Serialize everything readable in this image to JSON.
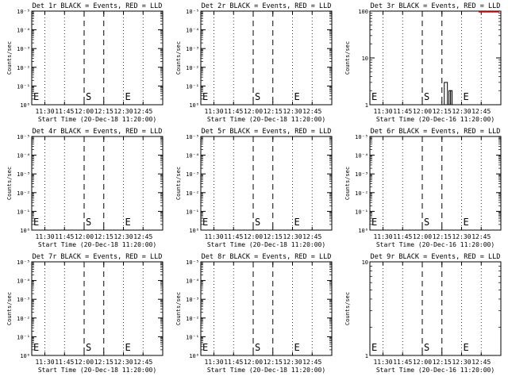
{
  "chart_data": [
    {
      "type": "line",
      "title": "Det 1r BLACK = Events, RED = LLD",
      "xlabel": "Start Time (20-Dec-18 11:20:00)",
      "ylabel": "Counts/sec",
      "x_ticks": [
        "11:30",
        "11:45",
        "12:00",
        "12:15",
        "12:30",
        "12:45"
      ],
      "y_scale": "log",
      "y_ticks": [
        "10⁰",
        "10⁻¹",
        "10⁻²",
        "10⁻³",
        "10⁻⁴",
        "10⁻⁵"
      ],
      "markers": [
        {
          "label": "E",
          "x": "11:20"
        },
        {
          "label": "S",
          "x": "12:00"
        },
        {
          "label": "E",
          "x": "12:30"
        }
      ],
      "series": []
    },
    {
      "type": "line",
      "title": "Det 2r BLACK = Events, RED = LLD",
      "xlabel": "Start Time (20-Dec-18 11:20:00)",
      "ylabel": "Counts/sec",
      "x_ticks": [
        "11:30",
        "11:45",
        "12:00",
        "12:15",
        "12:30",
        "12:45"
      ],
      "y_scale": "log",
      "y_ticks": [
        "10⁰",
        "10⁻¹",
        "10⁻²",
        "10⁻³",
        "10⁻⁴",
        "10⁻⁵"
      ],
      "markers": [
        {
          "label": "E",
          "x": "11:20"
        },
        {
          "label": "S",
          "x": "12:00"
        },
        {
          "label": "E",
          "x": "12:30"
        }
      ],
      "series": []
    },
    {
      "type": "line",
      "title": "Det 3r BLACK = Events, RED = LLD",
      "xlabel": "Start Time (20-Dec-16 11:20:00)",
      "ylabel": "Counts/sec",
      "x_ticks": [
        "11:30",
        "11:45",
        "12:00",
        "12:15",
        "12:30",
        "12:45"
      ],
      "y_scale": "log",
      "y_ticks": [
        "1",
        "10",
        "100"
      ],
      "markers": [
        {
          "label": "E",
          "x": "11:20"
        },
        {
          "label": "S",
          "x": "12:00"
        },
        {
          "label": "E",
          "x": "12:30"
        }
      ],
      "series": [
        {
          "color": "#000000",
          "hist": [
            [
              12.28,
              12.32,
              3
            ],
            [
              12.32,
              12.34,
              1
            ],
            [
              12.34,
              12.36,
              2
            ],
            [
              12.36,
              12.38,
              2
            ]
          ]
        }
      ]
    },
    {
      "type": "line",
      "title": "Det 4r BLACK = Events, RED = LLD",
      "xlabel": "Start Time (20-Dec-18 11:20:00)",
      "ylabel": "Counts/sec",
      "x_ticks": [
        "11:30",
        "11:45",
        "12:00",
        "12:15",
        "12:30",
        "12:45"
      ],
      "y_scale": "log",
      "y_ticks": [
        "10⁰",
        "10⁻¹",
        "10⁻²",
        "10⁻³",
        "10⁻⁴",
        "10⁻⁵"
      ],
      "markers": [
        {
          "label": "E",
          "x": "11:20"
        },
        {
          "label": "S",
          "x": "12:00"
        },
        {
          "label": "E",
          "x": "12:30"
        }
      ],
      "series": []
    },
    {
      "type": "line",
      "title": "Det 5r BLACK = Events, RED = LLD",
      "xlabel": "Start Time (20-Dec-18 11:20:00)",
      "ylabel": "Counts/sec",
      "x_ticks": [
        "11:30",
        "11:45",
        "12:00",
        "12:15",
        "12:30",
        "12:45"
      ],
      "y_scale": "log",
      "y_ticks": [
        "10⁰",
        "10⁻¹",
        "10⁻²",
        "10⁻³",
        "10⁻⁴",
        "10⁻⁵"
      ],
      "markers": [
        {
          "label": "E",
          "x": "11:20"
        },
        {
          "label": "S",
          "x": "12:00"
        },
        {
          "label": "E",
          "x": "12:30"
        }
      ],
      "series": []
    },
    {
      "type": "line",
      "title": "Det 6r BLACK = Events, RED = LLD",
      "xlabel": "Start Time (20-Dec-16 11:20:00)",
      "ylabel": "Counts/sec",
      "x_ticks": [
        "11:30",
        "11:45",
        "12:00",
        "12:15",
        "12:30",
        "12:45"
      ],
      "y_scale": "log",
      "y_ticks": [
        "10⁰",
        "10⁻¹",
        "10⁻²",
        "10⁻³",
        "10⁻⁴",
        "10⁻⁵"
      ],
      "markers": [
        {
          "label": "E",
          "x": "11:20"
        },
        {
          "label": "S",
          "x": "12:00"
        },
        {
          "label": "E",
          "x": "12:30"
        }
      ],
      "series": []
    },
    {
      "type": "line",
      "title": "Det 7r BLACK = Events, RED = LLD",
      "xlabel": "Start Time (20-Dec-18 11:20:00)",
      "ylabel": "Counts/sec",
      "x_ticks": [
        "11:30",
        "11:45",
        "12:00",
        "12:15",
        "12:30",
        "12:45"
      ],
      "y_scale": "log",
      "y_ticks": [
        "10⁰",
        "10⁻¹",
        "10⁻²",
        "10⁻³",
        "10⁻⁴",
        "10⁻⁵"
      ],
      "markers": [
        {
          "label": "E",
          "x": "11:20"
        },
        {
          "label": "S",
          "x": "12:00"
        },
        {
          "label": "E",
          "x": "12:30"
        }
      ],
      "series": []
    },
    {
      "type": "line",
      "title": "Det 8r BLACK = Events, RED = LLD",
      "xlabel": "Start Time (20-Dec-18 11:20:00)",
      "ylabel": "Counts/sec",
      "x_ticks": [
        "11:30",
        "11:45",
        "12:00",
        "12:15",
        "12:30",
        "12:45"
      ],
      "y_scale": "log",
      "y_ticks": [
        "10⁰",
        "10⁻¹",
        "10⁻²",
        "10⁻³",
        "10⁻⁴",
        "10⁻⁵"
      ],
      "markers": [
        {
          "label": "E",
          "x": "11:20"
        },
        {
          "label": "S",
          "x": "12:00"
        },
        {
          "label": "E",
          "x": "12:30"
        }
      ],
      "series": []
    },
    {
      "type": "line",
      "title": "Det 9r BLACK = Events, RED = LLD",
      "xlabel": "Start Time (20-Dec-16 11:20:00)",
      "ylabel": "Counts/sec",
      "x_ticks": [
        "11:30",
        "11:45",
        "12:00",
        "12:15",
        "12:30",
        "12:45"
      ],
      "y_scale": "log",
      "y_ticks": [
        "1",
        "10"
      ],
      "markers": [
        {
          "label": "E",
          "x": "11:20"
        },
        {
          "label": "S",
          "x": "12:00"
        },
        {
          "label": "E",
          "x": "12:30"
        }
      ],
      "series": []
    }
  ],
  "style": {
    "axis_color": "#000000",
    "line_color": "#000000",
    "lld_color": "#ff0000"
  }
}
